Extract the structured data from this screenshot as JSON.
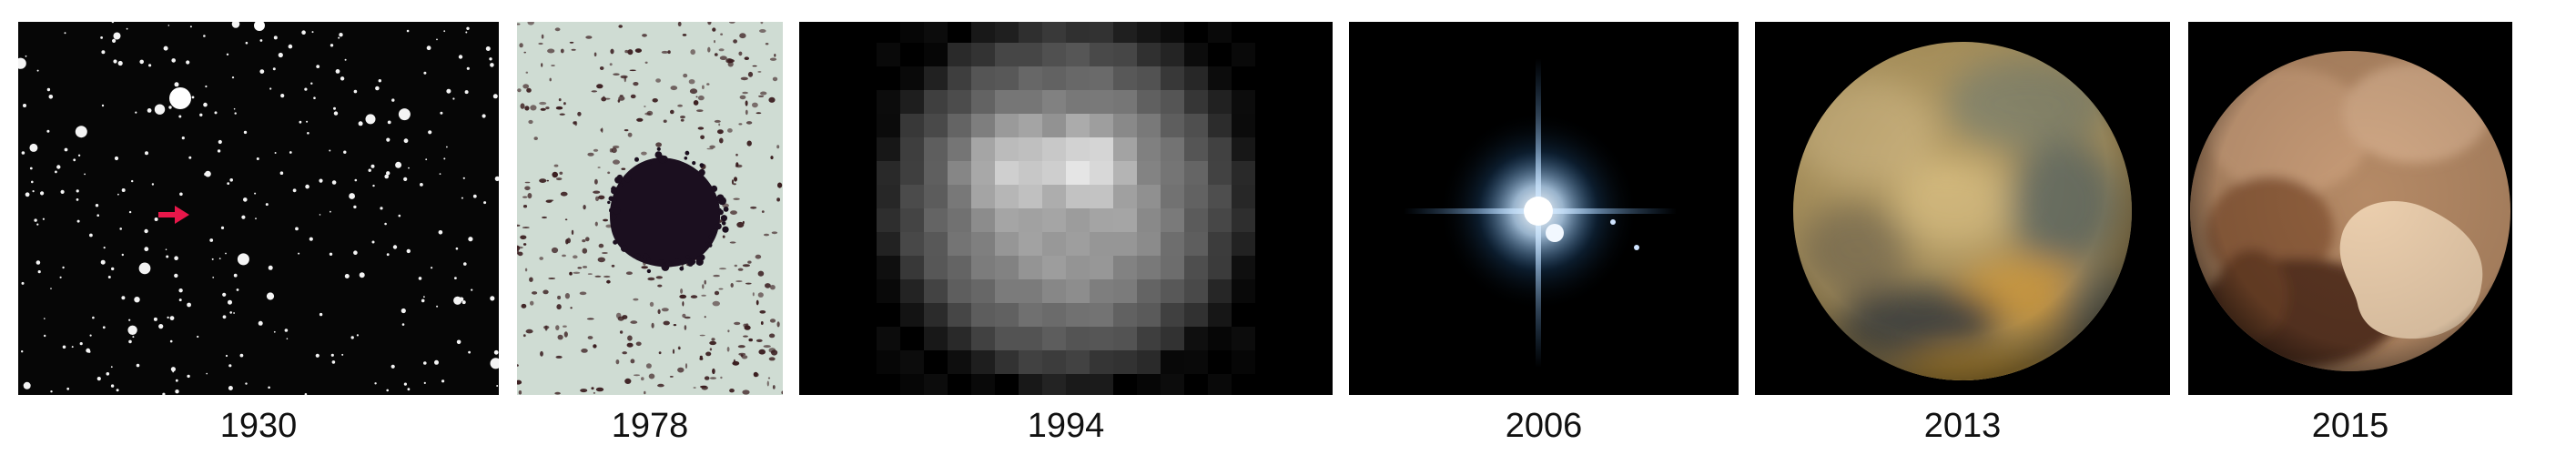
{
  "panels": [
    {
      "year": "1930",
      "subject": "discovery-plate"
    },
    {
      "year": "1978",
      "subject": "charon-discovery-image"
    },
    {
      "year": "1994",
      "subject": "pixelated-pluto"
    },
    {
      "year": "2006",
      "subject": "pluto-and-moons"
    },
    {
      "year": "2013",
      "subject": "blurry-pluto-map"
    },
    {
      "year": "2015",
      "subject": "new-horizons-pluto"
    }
  ],
  "colors": {
    "arrow": "#e8174a",
    "pluto_2015": "#c89d78",
    "pluto_2013": "#b9a060"
  }
}
